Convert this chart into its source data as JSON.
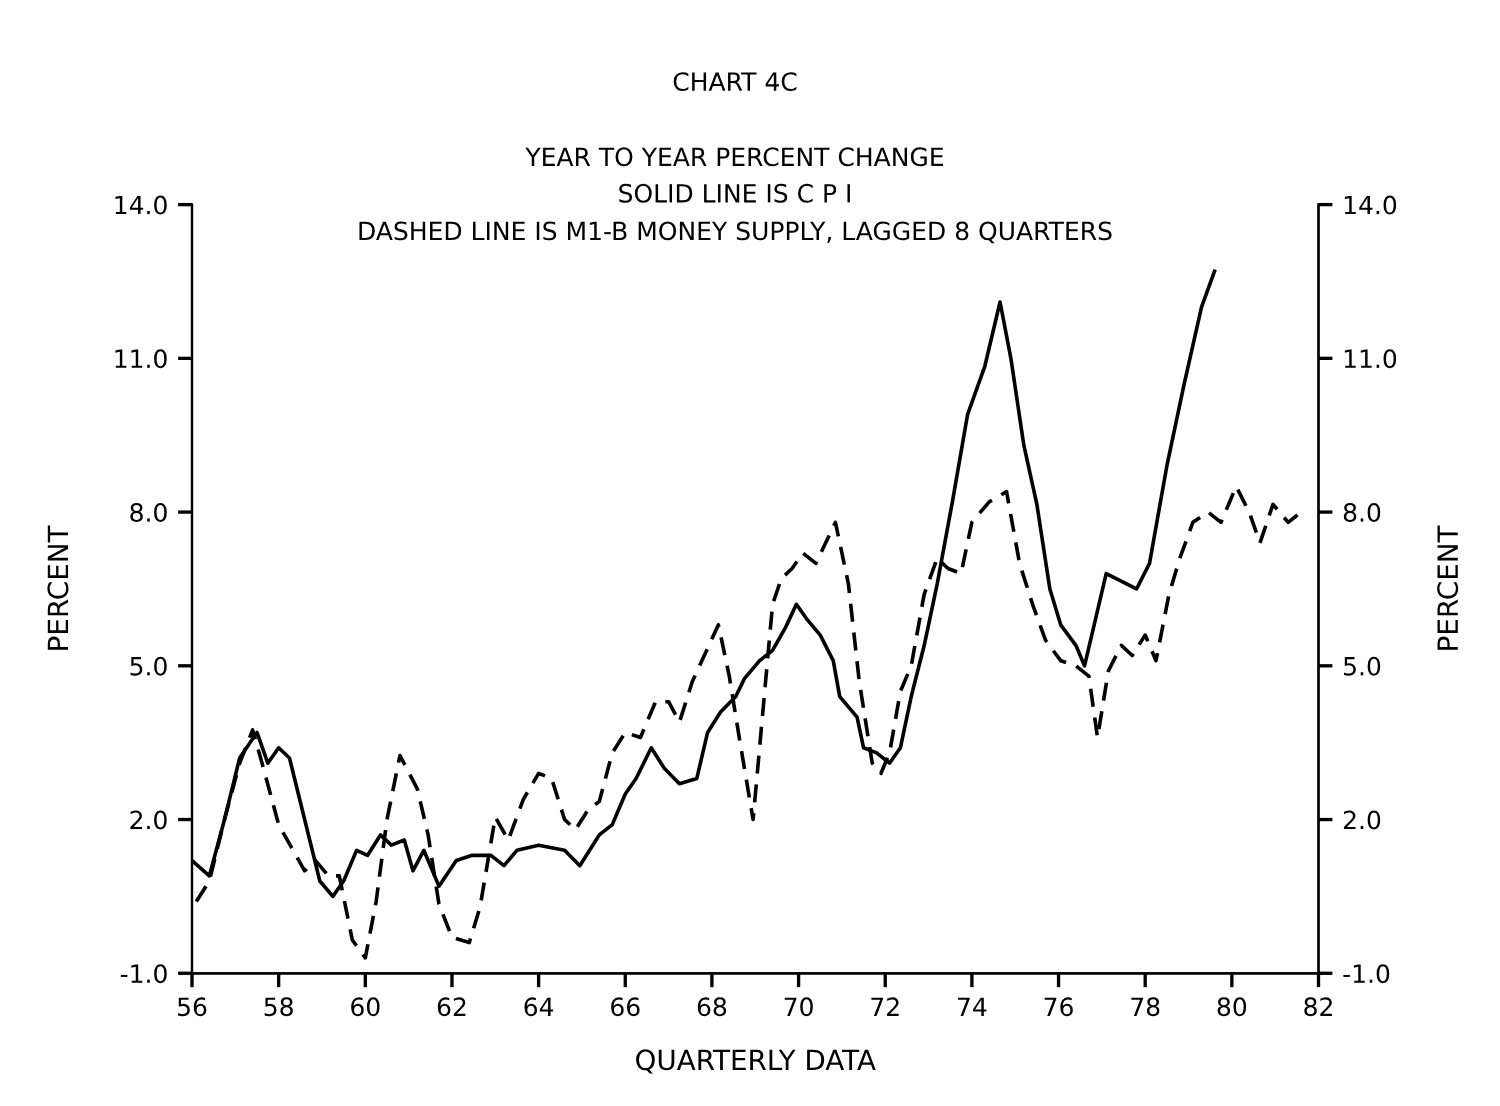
{
  "chart_data": {
    "type": "line",
    "title": "CHART 4C",
    "subtitle": "YEAR TO YEAR PERCENT CHANGE",
    "annotations": [
      "SOLID LINE IS C P I",
      "DASHED LINE IS M1-B MONEY SUPPLY, LAGGED 8 QUARTERS"
    ],
    "xlabel": "QUARTERLY DATA",
    "ylabel": "PERCENT",
    "y2label": "PERCENT",
    "series": [
      {
        "color": "#000000",
        "line_style": "solid",
        "x": [
          56.0,
          56.4,
          56.75,
          57.1,
          57.5,
          57.75,
          58.0,
          58.25,
          58.6,
          58.95,
          59.25,
          59.5,
          59.8,
          60.05,
          60.35,
          60.6,
          60.9,
          61.1,
          61.35,
          61.7,
          62.1,
          62.45,
          62.9,
          63.2,
          63.5,
          64.0,
          64.6,
          64.95,
          65.4,
          65.7,
          66.0,
          66.25,
          66.6,
          66.9,
          67.25,
          67.65,
          67.9,
          68.2,
          68.55,
          68.75,
          69.1,
          69.4,
          69.7,
          69.95,
          70.2,
          70.5,
          70.8,
          70.95,
          71.35,
          71.5,
          71.8,
          72.1,
          72.35,
          72.6,
          72.9,
          73.2,
          73.55,
          73.9,
          74.3,
          74.65,
          74.9,
          75.2,
          75.5,
          75.8,
          76.05,
          76.4,
          76.6,
          77.1,
          77.8,
          78.1,
          78.5,
          78.9,
          79.3,
          79.6
        ],
        "values": [
          1.2,
          0.9,
          2.0,
          3.2,
          3.7,
          3.1,
          3.4,
          3.2,
          2.0,
          0.8,
          0.5,
          0.8,
          1.4,
          1.3,
          1.7,
          1.5,
          1.6,
          1.0,
          1.4,
          0.7,
          1.2,
          1.3,
          1.3,
          1.1,
          1.4,
          1.5,
          1.4,
          1.1,
          1.7,
          1.9,
          2.5,
          2.8,
          3.4,
          3.0,
          2.7,
          2.8,
          3.7,
          4.1,
          4.4,
          4.75,
          5.1,
          5.3,
          5.75,
          6.2,
          5.9,
          5.6,
          5.1,
          4.4,
          4.0,
          3.4,
          3.3,
          3.1,
          3.4,
          4.4,
          5.4,
          6.6,
          8.2,
          9.9,
          10.85,
          12.1,
          11.0,
          9.3,
          8.15,
          6.5,
          5.8,
          5.4,
          5.0,
          6.8,
          6.5,
          7.0,
          8.9,
          10.5,
          12.0,
          12.7
        ]
      },
      {
        "color": "#000000",
        "line_style": "dashed",
        "x": [
          56.1,
          56.4,
          56.75,
          57.1,
          57.4,
          57.65,
          58.0,
          58.4,
          58.6,
          58.85,
          59.15,
          59.4,
          59.7,
          60.0,
          60.25,
          60.5,
          60.8,
          61.2,
          61.45,
          61.7,
          62.0,
          62.4,
          62.65,
          63.0,
          63.3,
          63.65,
          64.0,
          64.3,
          64.6,
          64.85,
          65.15,
          65.4,
          65.7,
          66.0,
          66.35,
          66.7,
          67.0,
          67.25,
          67.55,
          68.15,
          68.4,
          68.65,
          68.95,
          69.1,
          69.4,
          69.6,
          69.85,
          70.1,
          70.4,
          70.85,
          71.15,
          71.4,
          71.7,
          71.9,
          72.1,
          72.35,
          72.6,
          72.9,
          73.2,
          73.45,
          73.75,
          74.0,
          74.4,
          74.8,
          75.1,
          75.4,
          75.7,
          76.05,
          76.4,
          76.7,
          76.9,
          77.15,
          77.45,
          77.7,
          78.0,
          78.25,
          78.55,
          78.8,
          79.1,
          79.45,
          79.75,
          80.1,
          80.4,
          80.65,
          80.95,
          81.3,
          81.6
        ],
        "values": [
          0.4,
          0.8,
          2.0,
          3.1,
          3.75,
          3.0,
          1.9,
          1.3,
          1.0,
          1.2,
          0.9,
          0.9,
          -0.35,
          -0.7,
          0.4,
          2.0,
          3.25,
          2.6,
          1.7,
          0.35,
          -0.3,
          -0.4,
          0.3,
          2.05,
          1.6,
          2.4,
          2.9,
          2.8,
          2.0,
          1.8,
          2.2,
          2.35,
          3.3,
          3.7,
          3.6,
          4.3,
          4.3,
          3.9,
          4.7,
          5.8,
          4.8,
          3.5,
          2.0,
          3.4,
          6.2,
          6.7,
          6.9,
          7.2,
          7.0,
          7.8,
          6.6,
          4.7,
          3.1,
          2.9,
          3.3,
          4.5,
          5.0,
          6.4,
          7.1,
          6.9,
          6.8,
          7.8,
          8.2,
          8.4,
          7.0,
          6.2,
          5.5,
          5.1,
          5.0,
          4.8,
          3.6,
          4.9,
          5.4,
          5.2,
          5.6,
          5.1,
          6.4,
          7.1,
          7.8,
          8.0,
          7.8,
          8.5,
          8.0,
          7.4,
          8.15,
          7.8,
          8.0
        ]
      }
    ],
    "xlim": [
      56,
      82
    ],
    "xticks": [
      56,
      58,
      60,
      62,
      64,
      66,
      68,
      70,
      72,
      74,
      76,
      78,
      80,
      82
    ],
    "ylim": [
      -1,
      14
    ],
    "yticks": [
      {
        "value": -1,
        "label": "-1.0"
      },
      {
        "value": 2,
        "label": "2.0"
      },
      {
        "value": 5,
        "label": "5.0"
      },
      {
        "value": 8,
        "label": "8.0"
      },
      {
        "value": 11,
        "label": "11.0"
      },
      {
        "value": 14,
        "label": "14.0"
      }
    ],
    "y2lim": [
      -1,
      14
    ],
    "y2ticks": [
      {
        "value": -1,
        "label": "-1.0"
      },
      {
        "value": 2,
        "label": "2.0"
      },
      {
        "value": 5,
        "label": "5.0"
      },
      {
        "value": 8,
        "label": "8.0"
      },
      {
        "value": 11,
        "label": "11.0"
      },
      {
        "value": 14,
        "label": "14.0"
      }
    ]
  }
}
